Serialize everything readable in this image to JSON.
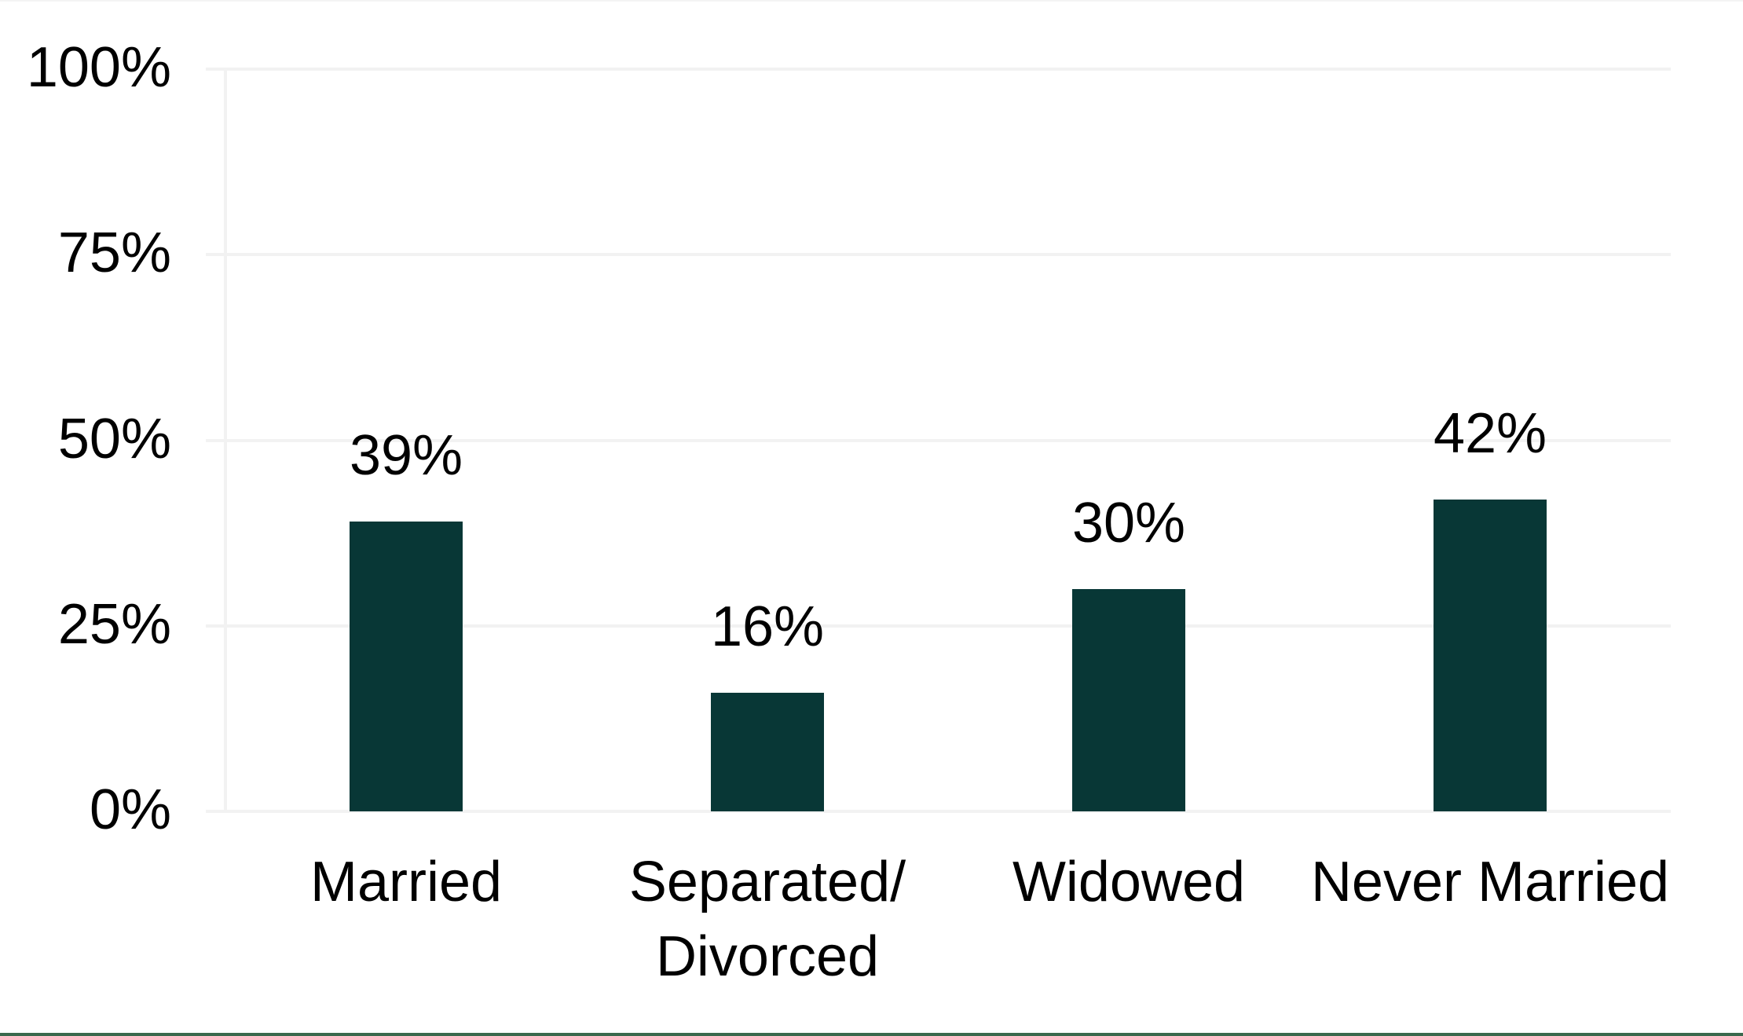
{
  "chart_data": {
    "type": "bar",
    "title": "",
    "xlabel": "",
    "ylabel": "",
    "categories": [
      "Married",
      "Separated/\nDivorced",
      "Widowed",
      "Never Married"
    ],
    "values": [
      39,
      16,
      30,
      42
    ],
    "data_labels": [
      "39%",
      "16%",
      "30%",
      "42%"
    ],
    "y_ticks": [
      "0%",
      "25%",
      "50%",
      "75%",
      "100%"
    ],
    "y_tick_values": [
      0,
      25,
      50,
      75,
      100
    ],
    "ylim": [
      0,
      100
    ],
    "grid": "horizontal-only",
    "legend": "none",
    "colors": {
      "bar": "#083736",
      "gridline": "#f2f2f2",
      "axis_line": "#f2f2f2",
      "text": "#000000",
      "bottom_rule": "#3a684d",
      "background": "#ffffff"
    }
  }
}
